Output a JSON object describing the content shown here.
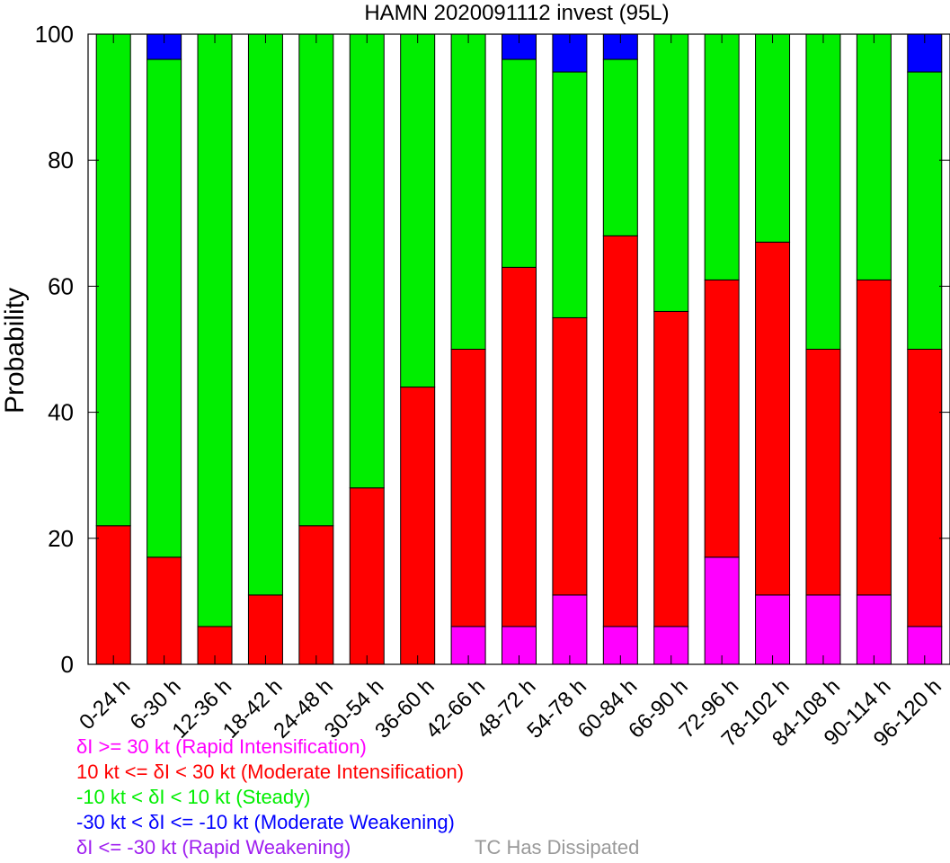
{
  "chart_data": {
    "type": "bar",
    "stacked": true,
    "title": "HAMN 2020091112 invest (95L)",
    "xlabel": "",
    "ylabel": "Probability",
    "ylim": [
      0,
      100
    ],
    "yticks": [
      0,
      20,
      40,
      60,
      80,
      100
    ],
    "categories": [
      "0-24 h",
      "6-30 h",
      "12-36 h",
      "18-42 h",
      "24-48 h",
      "30-54 h",
      "36-60 h",
      "42-66 h",
      "48-72 h",
      "54-78 h",
      "60-84 h",
      "66-90 h",
      "72-96 h",
      "78-102 h",
      "84-108 h",
      "90-114 h",
      "96-120 h"
    ],
    "series": [
      {
        "name": "Rapid Intensification",
        "color": "#ff00ff",
        "values": [
          0,
          0,
          0,
          0,
          0,
          0,
          0,
          6,
          6,
          11,
          6,
          6,
          17,
          11,
          11,
          11,
          6
        ]
      },
      {
        "name": "Moderate Intensification",
        "color": "#ff0000",
        "values": [
          22,
          17,
          6,
          11,
          22,
          28,
          44,
          44,
          57,
          44,
          62,
          50,
          44,
          56,
          39,
          50,
          44
        ]
      },
      {
        "name": "Steady",
        "color": "#00ee00",
        "values": [
          78,
          79,
          94,
          89,
          78,
          72,
          56,
          50,
          33,
          39,
          28,
          44,
          39,
          33,
          50,
          39,
          44
        ]
      },
      {
        "name": "Moderate Weakening",
        "color": "#0000ff",
        "values": [
          0,
          4,
          0,
          0,
          0,
          0,
          0,
          0,
          4,
          6,
          4,
          0,
          0,
          0,
          0,
          0,
          6
        ]
      },
      {
        "name": "Rapid Weakening",
        "color": "#a020f0",
        "values": [
          0,
          0,
          0,
          0,
          0,
          0,
          0,
          0,
          0,
          0,
          0,
          0,
          0,
          0,
          0,
          0,
          0
        ]
      }
    ],
    "legend": [
      {
        "text": "δI >= 30 kt (Rapid Intensification)",
        "color": "#ff00ff"
      },
      {
        "text": "10 kt <= δI < 30 kt (Moderate Intensification)",
        "color": "#ff0000"
      },
      {
        "text": "-10 kt < δI < 10 kt (Steady)",
        "color": "#00ee00"
      },
      {
        "text": "-30 kt < δI <= -10 kt (Moderate Weakening)",
        "color": "#0000ff"
      },
      {
        "text": "δI <= -30 kt (Rapid Weakening)",
        "color": "#a020f0"
      }
    ],
    "note": {
      "text": "TC Has Dissipated",
      "color": "#999999"
    },
    "legend_position": "bottom-left"
  }
}
